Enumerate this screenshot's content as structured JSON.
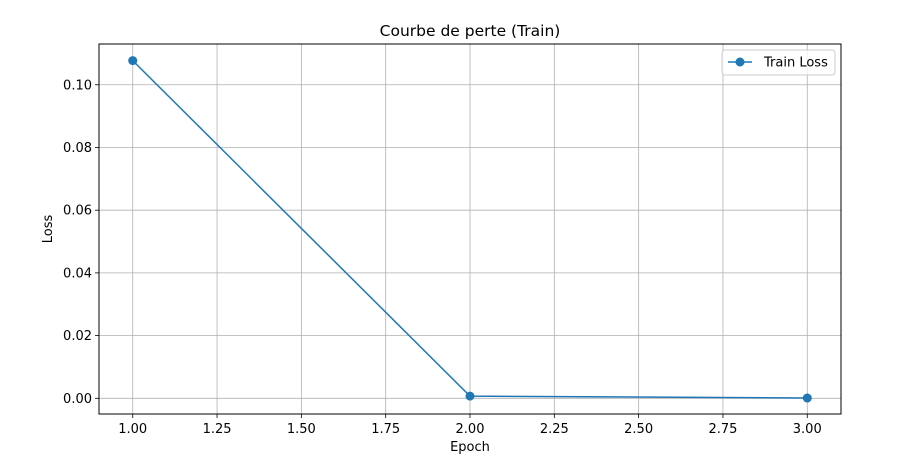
{
  "chart_data": {
    "type": "line",
    "title": "Courbe de perte (Train)",
    "xlabel": "Epoch",
    "ylabel": "Loss",
    "xlim": [
      0.9,
      3.1
    ],
    "ylim": [
      -0.005,
      0.113
    ],
    "x_ticks": [
      1.0,
      1.25,
      1.5,
      1.75,
      2.0,
      2.25,
      2.5,
      2.75,
      3.0
    ],
    "x_tick_labels": [
      "1.00",
      "1.25",
      "1.50",
      "1.75",
      "2.00",
      "2.25",
      "2.50",
      "2.75",
      "3.00"
    ],
    "y_ticks": [
      0.0,
      0.02,
      0.04,
      0.06,
      0.08,
      0.1
    ],
    "y_tick_labels": [
      "0.00",
      "0.02",
      "0.04",
      "0.06",
      "0.08",
      "0.10"
    ],
    "grid": true,
    "legend_position": "top-right",
    "series": [
      {
        "name": "Train Loss",
        "color": "#1f77b4",
        "marker": "circle",
        "x": [
          1,
          2,
          3
        ],
        "y": [
          0.1077,
          0.0007,
          0.0001
        ]
      }
    ]
  }
}
